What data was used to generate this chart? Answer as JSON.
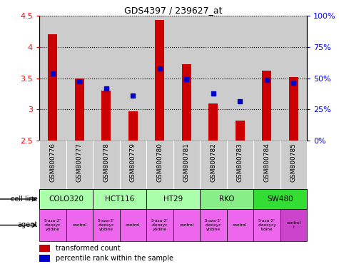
{
  "title": "GDS4397 / 239627_at",
  "samples": [
    "GSM800776",
    "GSM800777",
    "GSM800778",
    "GSM800779",
    "GSM800780",
    "GSM800781",
    "GSM800782",
    "GSM800783",
    "GSM800784",
    "GSM800785"
  ],
  "red_values": [
    4.2,
    3.5,
    3.3,
    2.97,
    4.43,
    3.72,
    3.1,
    2.82,
    3.62,
    3.52
  ],
  "blue_values": [
    3.58,
    3.45,
    3.33,
    3.22,
    3.65,
    3.48,
    3.26,
    3.13,
    3.47,
    3.43
  ],
  "ylim_left": [
    2.5,
    4.5
  ],
  "ylim_right": [
    0,
    100
  ],
  "yticks_left": [
    2.5,
    3.0,
    3.5,
    4.0,
    4.5
  ],
  "ytick_labels_left": [
    "2.5",
    "3",
    "3.5",
    "4",
    "4.5"
  ],
  "yticks_right": [
    0,
    25,
    50,
    75,
    100
  ],
  "ytick_labels_right": [
    "0%",
    "25%",
    "50%",
    "75%",
    "100%"
  ],
  "cell_lines": [
    {
      "name": "COLO320",
      "start": 0,
      "end": 2,
      "color": "#aaffaa"
    },
    {
      "name": "HCT116",
      "start": 2,
      "end": 4,
      "color": "#aaffaa"
    },
    {
      "name": "HT29",
      "start": 4,
      "end": 6,
      "color": "#aaffaa"
    },
    {
      "name": "RKO",
      "start": 6,
      "end": 8,
      "color": "#88ee88"
    },
    {
      "name": "SW480",
      "start": 8,
      "end": 10,
      "color": "#33dd33"
    }
  ],
  "agent_labels": [
    "5-aza-2'\n-deoxyc\nytidine",
    "control",
    "5-aza-2'\n-deoxyc\nytidine",
    "control",
    "5-aza-2'\n-deoxyc\nytidine",
    "control",
    "5-aza-2'\n-deoxyc\nytidine",
    "control",
    "5-aza-2'\n-deoxycy\ntidine",
    "control\nl"
  ],
  "agent_colors": [
    "#ee66ee",
    "#ee66ee",
    "#ee66ee",
    "#ee66ee",
    "#ee66ee",
    "#ee66ee",
    "#ee66ee",
    "#ee66ee",
    "#ee66ee",
    "#cc44cc"
  ],
  "bar_color": "#cc0000",
  "dot_color": "#0000cc",
  "sample_bg_color": "#cccccc",
  "baseline": 2.5,
  "bar_width": 0.35,
  "fig_width": 4.75,
  "fig_height": 3.84,
  "dpi": 100
}
